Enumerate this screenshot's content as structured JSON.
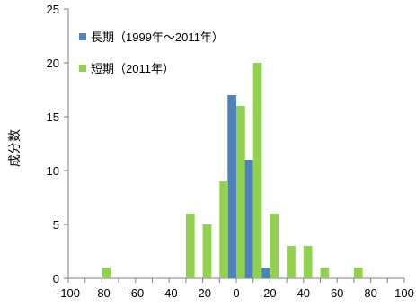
{
  "chart_data": {
    "type": "bar",
    "title": "",
    "xlabel": "",
    "ylabel": "成分数",
    "xlim": [
      -100,
      100
    ],
    "ylim": [
      0,
      25
    ],
    "bin_width": 10,
    "x_ticks": [
      -100,
      -80,
      -60,
      -40,
      -20,
      0,
      20,
      40,
      60,
      80,
      100
    ],
    "y_ticks": [
      0,
      5,
      10,
      15,
      20,
      25
    ],
    "grid": false,
    "legend_position": "top-left",
    "series": [
      {
        "name": "長期（1999年～2011年）",
        "color": "#4f81bd",
        "x": [
          0,
          10,
          20
        ],
        "values": [
          17,
          11,
          1
        ]
      },
      {
        "name": "短期（2011年）",
        "color": "#92d050",
        "x": [
          -80,
          -30,
          -20,
          -10,
          0,
          10,
          20,
          30,
          40,
          50,
          70
        ],
        "values": [
          1,
          6,
          5,
          9,
          16,
          20,
          6,
          3,
          3,
          1,
          1
        ]
      }
    ]
  }
}
